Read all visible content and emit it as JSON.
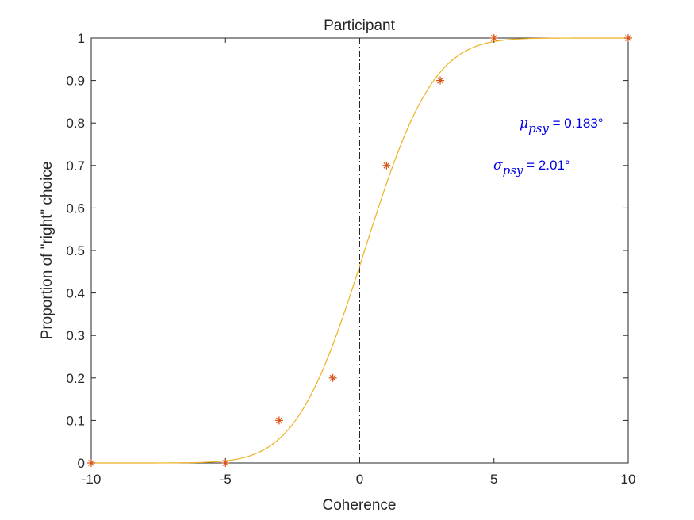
{
  "chart_data": {
    "type": "scatter",
    "title": "Participant",
    "xlabel": "Coherence",
    "ylabel": "Proportion of \"right\" choice",
    "xlim": [
      -10,
      10
    ],
    "ylim": [
      0,
      1
    ],
    "x_ticks": [
      -10,
      -5,
      0,
      5,
      10
    ],
    "y_ticks": [
      0,
      0.1,
      0.2,
      0.3,
      0.4,
      0.5,
      0.6,
      0.7,
      0.8,
      0.9,
      1
    ],
    "x_tick_labels": [
      "-10",
      "-5",
      "0",
      "5",
      "10"
    ],
    "y_tick_labels": [
      "0",
      "0.1",
      "0.2",
      "0.3",
      "0.4",
      "0.5",
      "0.6",
      "0.7",
      "0.8",
      "0.9",
      "1"
    ],
    "grid": false,
    "series": [
      {
        "marker": "asterisk",
        "color": "#d95319",
        "x": [
          -10,
          -5,
          -3,
          -1,
          1,
          3,
          5,
          10
        ],
        "y": [
          0,
          0,
          0.1,
          0.2,
          0.7,
          0.9,
          1,
          1
        ]
      }
    ],
    "fit": {
      "type": "cumulative-normal",
      "color": "#edb120",
      "mu": 0.183,
      "sigma": 2.01
    },
    "reference_line": {
      "x": 0,
      "style": "dash-dot",
      "color": "#262626"
    },
    "annotations": {
      "mu_symbol": "μ",
      "mu_subscript": "psy",
      "mu_text": " =  0.183°",
      "sigma_symbol": "σ",
      "sigma_subscript": "psy",
      "sigma_text": " =   2.01°"
    }
  }
}
